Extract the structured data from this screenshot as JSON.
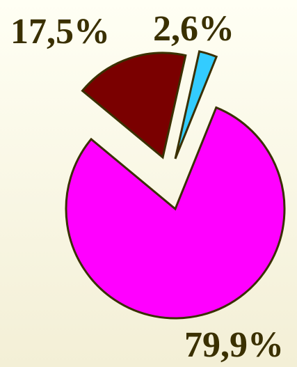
{
  "chart_data": {
    "type": "pie",
    "categories": [
      null,
      null,
      null
    ],
    "values": [
      79.9,
      17.5,
      2.6
    ],
    "value_labels": [
      "79,9%",
      "17,5%",
      "2,6%"
    ],
    "colors": [
      "#ff00ff",
      "#7a0000",
      "#33ccff"
    ]
  }
}
